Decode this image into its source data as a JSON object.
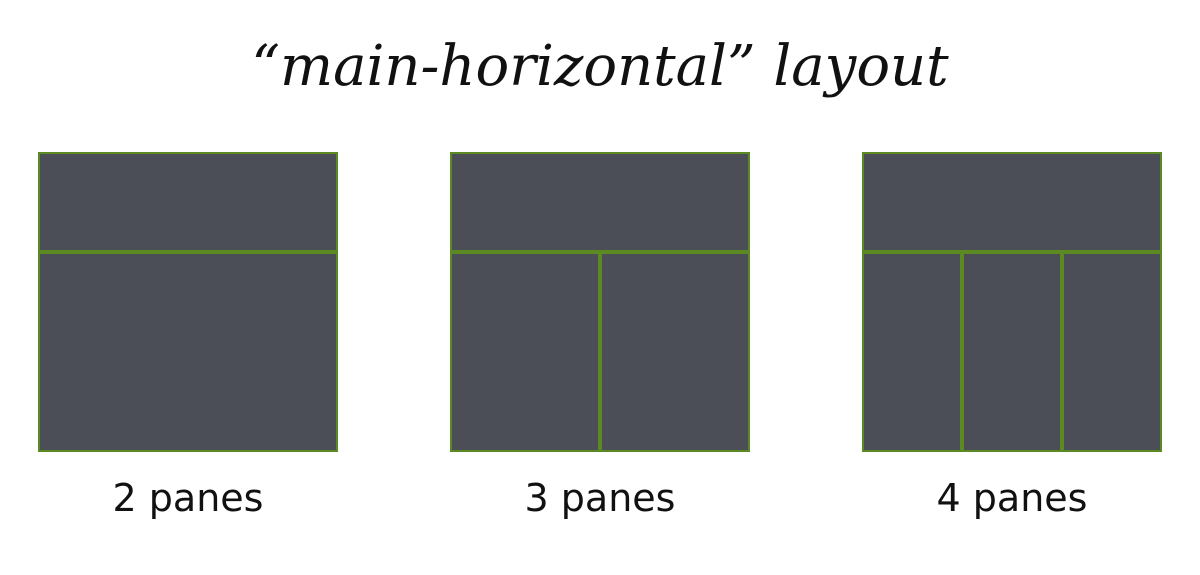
{
  "title": "“main-horizontal” layout",
  "colors": {
    "pane": "#4b4d57",
    "border": "#5b8a22",
    "background": "#ffffff",
    "text": "#111111"
  },
  "layouts": [
    {
      "caption": "2 panes",
      "pane_count": 2,
      "bottom_panes": 1
    },
    {
      "caption": "3 panes",
      "pane_count": 3,
      "bottom_panes": 2
    },
    {
      "caption": "4 panes",
      "pane_count": 4,
      "bottom_panes": 3
    }
  ]
}
